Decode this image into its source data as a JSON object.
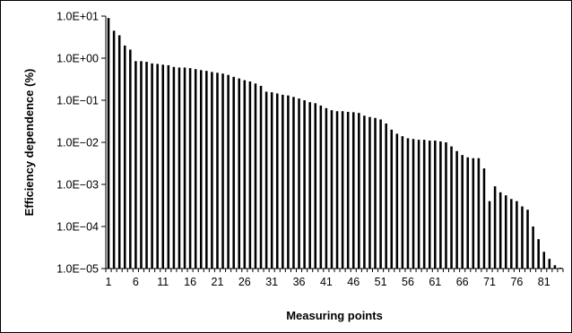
{
  "chart_data": {
    "type": "bar",
    "title": "",
    "xlabel": "Measuring points",
    "ylabel": "Efficiency dependence (%)",
    "y_scale": "log",
    "ylim": [
      1e-05,
      10
    ],
    "y_ticks": [
      "1.0E+01",
      "1.0E+00",
      "1.0E−01",
      "1.0E−02",
      "1.0E−03",
      "1.0E−04",
      "1.0E−05"
    ],
    "x_tick_labels": [
      "1",
      "6",
      "11",
      "16",
      "21",
      "26",
      "31",
      "36",
      "41",
      "46",
      "51",
      "56",
      "61",
      "66",
      "71",
      "76",
      "81"
    ],
    "bar_color": "#000000",
    "grid": false,
    "legend": "none",
    "categories": [
      1,
      2,
      3,
      4,
      5,
      6,
      7,
      8,
      9,
      10,
      11,
      12,
      13,
      14,
      15,
      16,
      17,
      18,
      19,
      20,
      21,
      22,
      23,
      24,
      25,
      26,
      27,
      28,
      29,
      30,
      31,
      32,
      33,
      34,
      35,
      36,
      37,
      38,
      39,
      40,
      41,
      42,
      43,
      44,
      45,
      46,
      47,
      48,
      49,
      50,
      51,
      52,
      53,
      54,
      55,
      56,
      57,
      58,
      59,
      60,
      61,
      62,
      63,
      64,
      65,
      66,
      67,
      68,
      69,
      70,
      71,
      72,
      73,
      74,
      75,
      76,
      77,
      78,
      79,
      80,
      81,
      82,
      83,
      84
    ],
    "values": [
      9.0,
      4.5,
      3.5,
      2.0,
      1.6,
      0.85,
      0.85,
      0.82,
      0.75,
      0.73,
      0.7,
      0.68,
      0.62,
      0.6,
      0.6,
      0.58,
      0.55,
      0.52,
      0.5,
      0.47,
      0.45,
      0.43,
      0.4,
      0.36,
      0.33,
      0.3,
      0.28,
      0.25,
      0.22,
      0.16,
      0.155,
      0.145,
      0.135,
      0.13,
      0.12,
      0.11,
      0.1,
      0.09,
      0.085,
      0.075,
      0.065,
      0.058,
      0.055,
      0.055,
      0.053,
      0.052,
      0.05,
      0.043,
      0.04,
      0.038,
      0.035,
      0.028,
      0.02,
      0.016,
      0.014,
      0.0125,
      0.012,
      0.0115,
      0.0115,
      0.011,
      0.011,
      0.0105,
      0.01,
      0.008,
      0.0062,
      0.005,
      0.0044,
      0.0042,
      0.0042,
      0.0024,
      0.0004,
      0.0009,
      0.00065,
      0.00055,
      0.00045,
      0.0004,
      0.0003,
      0.00025,
      0.0001,
      5e-05,
      2.5e-05,
      1.7e-05,
      1.2e-05,
      1.05e-05
    ]
  }
}
